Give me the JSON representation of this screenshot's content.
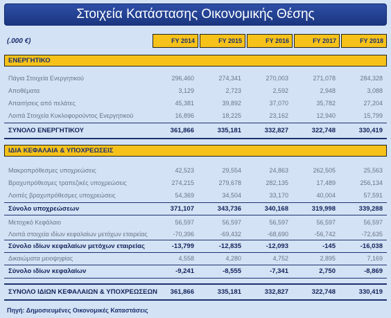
{
  "title": "Στοιχεία Κατάστασης Οικονομικής Θέσης",
  "units": "(.000 €)",
  "years": [
    "FY 2014",
    "FY 2015",
    "FY 2016",
    "FY 2017",
    "FY 2018"
  ],
  "assets_section": "ΕΝΕΡΓΗΤΙΚΟ",
  "assets_rows": [
    {
      "label": "Πάγια Στοιχεία Ενεργητικού",
      "values": [
        "296,460",
        "274,341",
        "270,003",
        "271,078",
        "284,328"
      ]
    },
    {
      "label": "Αποθέματα",
      "values": [
        "3,129",
        "2,723",
        "2,592",
        "2,948",
        "3,088"
      ]
    },
    {
      "label": "Απαιτήσεις από πελάτες",
      "values": [
        "45,381",
        "39,892",
        "37,070",
        "35,782",
        "27,204"
      ]
    },
    {
      "label": "Λοιπά Στοιχεία Κυκλοφορούντος Ενεργητικού",
      "values": [
        "16,896",
        "18,225",
        "23,162",
        "12,940",
        "15,799"
      ]
    }
  ],
  "assets_total": {
    "label": "ΣΥΝΟΛΟ ΕΝΕΡΓΗΤΙΚΟΥ",
    "values": [
      "361,866",
      "335,181",
      "332,827",
      "322,748",
      "330,419"
    ]
  },
  "equity_section": "ΙΔΙΑ ΚΕΦΑΛΑΙΑ & ΥΠΟΧΡΕΩΣΕΙΣ",
  "liab_rows": [
    {
      "label": "Μακροπρόθεσμες υποχρεώσεις",
      "values": [
        "42,523",
        "29,554",
        "24,863",
        "262,505",
        "25,563"
      ]
    },
    {
      "label": "Βραχυπρόθεσμες τραπεζικές υποχρεώσεις",
      "values": [
        "274,215",
        "279,678",
        "282,135",
        "17,489",
        "256,134"
      ]
    },
    {
      "label": "Λοιπές βραχυπρόθεσμες υποχρεώσεις",
      "values": [
        "54,369",
        "34,504",
        "33,170",
        "40,004",
        "57,591"
      ]
    }
  ],
  "liab_total": {
    "label": "Σύνολο υποχρεώσεων",
    "values": [
      "371,107",
      "343,736",
      "340,168",
      "319,998",
      "339,288"
    ]
  },
  "equity_rows": [
    {
      "label": "Μετοχικό Κεφάλαιο",
      "values": [
        "56,597",
        "56,597",
        "56,597",
        "56,597",
        "56,597"
      ]
    },
    {
      "label": "Λοιπά στοιχεία ιδίων κεφαλαίων μετόχων εταιρείας",
      "values": [
        "-70,396",
        "-69,432",
        "-68,690",
        "-56,742",
        "-72,635"
      ]
    }
  ],
  "equity_sub": {
    "label": "Σύνολο ιδίων κεφαλαίων μετόχων εταιρείας",
    "values": [
      "-13,799",
      "-12,835",
      "-12,093",
      "-145",
      "-16,038"
    ]
  },
  "minority": {
    "label": "Δικαιώματα μειοψηφίας",
    "values": [
      "4,558",
      "4,280",
      "4,752",
      "2,895",
      "7,169"
    ]
  },
  "equity_total": {
    "label": "Σύνολο ιδίων κεφαλαίων",
    "values": [
      "-9,241",
      "-8,555",
      "-7,341",
      "2,750",
      "-8,869"
    ]
  },
  "grand_total": {
    "label": "ΣΥΝΟΛΟ ΙΔΙΩΝ ΚΕΦΑΛΑΙΩΝ & ΥΠΟΧΡΕΩΣΕΩΝ",
    "values": [
      "361,866",
      "335,181",
      "332,827",
      "322,748",
      "330,419"
    ]
  },
  "source": "Πηγή: Δημοσιευμένες Οικονομικές Καταστάσεις"
}
